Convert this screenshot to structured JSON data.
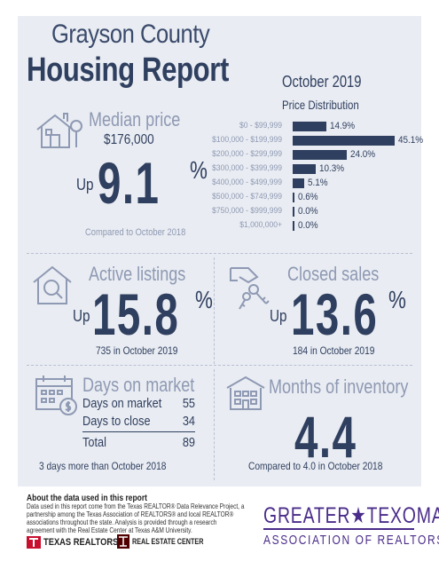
{
  "header": {
    "title_line1": "Grayson County",
    "title_line2": "Housing Report",
    "period": "October 2019"
  },
  "median_price": {
    "heading": "Median price",
    "value": "$176,000",
    "direction": "Up",
    "change": "9.1",
    "unit": "%",
    "note": "Compared to October 2018",
    "icon": "house-icon"
  },
  "price_distribution": {
    "title": "Price Distribution",
    "rows": [
      {
        "label": "$0 - $99,999",
        "value_text": "14.9%"
      },
      {
        "label": "$100,000 - $199,999",
        "value_text": "45.1%"
      },
      {
        "label": "$200,000 - $299,999",
        "value_text": "24.0%"
      },
      {
        "label": "$300,000 - $399,999",
        "value_text": "10.3%"
      },
      {
        "label": "$400,000 - $499,999",
        "value_text": "5.1%"
      },
      {
        "label": "$500,000 - $749,999",
        "value_text": "0.6%"
      },
      {
        "label": "$750,000 - $999,999",
        "value_text": "0.0%"
      },
      {
        "label": "$1,000,000+",
        "value_text": "0.0%"
      }
    ]
  },
  "chart_data": {
    "type": "bar",
    "orientation": "horizontal",
    "title": "Price Distribution",
    "categories": [
      "$0 - $99,999",
      "$100,000 - $199,999",
      "$200,000 - $299,999",
      "$300,000 - $399,999",
      "$400,000 - $499,999",
      "$500,000 - $749,999",
      "$750,000 - $999,999",
      "$1,000,000+"
    ],
    "values": [
      14.9,
      45.1,
      24.0,
      10.3,
      5.1,
      0.6,
      0.0,
      0.0
    ],
    "value_unit": "%",
    "xlim": [
      0,
      45.1
    ],
    "bar_color": "#2f3f5f"
  },
  "active_listings": {
    "heading": "Active listings",
    "direction": "Up",
    "change": "15.8",
    "unit": "%",
    "note": "735 in October 2019",
    "icon": "magnifier-house-icon"
  },
  "closed_sales": {
    "heading": "Closed sales",
    "direction": "Up",
    "change": "13.6",
    "unit": "%",
    "note": "184 in October 2019",
    "icon": "hand-keys-icon"
  },
  "days_on_market": {
    "heading": "Days on market",
    "rows": [
      {
        "label": "Days on market",
        "value": "55"
      },
      {
        "label": "Days to close",
        "value": "34"
      }
    ],
    "total_label": "Total",
    "total_value": "89",
    "note": "3 days more than October 2018",
    "icon": "calendar-dollar-icon"
  },
  "months_inventory": {
    "heading": "Months of inventory",
    "value": "4.4",
    "note": "Compared to 4.0 in October 2018",
    "icon": "building-icon"
  },
  "footer": {
    "about_title": "About the data used in this report",
    "about_text": "Data used in this report come from the Texas REALTOR® Data Relevance Project, a partnership among the Texas Association of REALTORS® and local REALTOR® associations throughout the state. Analysis is provided through a research agreement with the Real Estate Center at Texas A&M University.",
    "logo_texas_realtors": "TEXAS REALTORS",
    "logo_real_estate_center": "REAL ESTATE CENTER",
    "association_line1": "GREATER★TEXOMA",
    "association_line2": "ASSOCIATION OF REALTORS"
  },
  "colors": {
    "navy": "#2f3f5f",
    "muted": "#8e99b3",
    "panel_bg": "#e9ecf2",
    "association_purple": "#4a2c8a",
    "logo_red": "#c8102e"
  }
}
